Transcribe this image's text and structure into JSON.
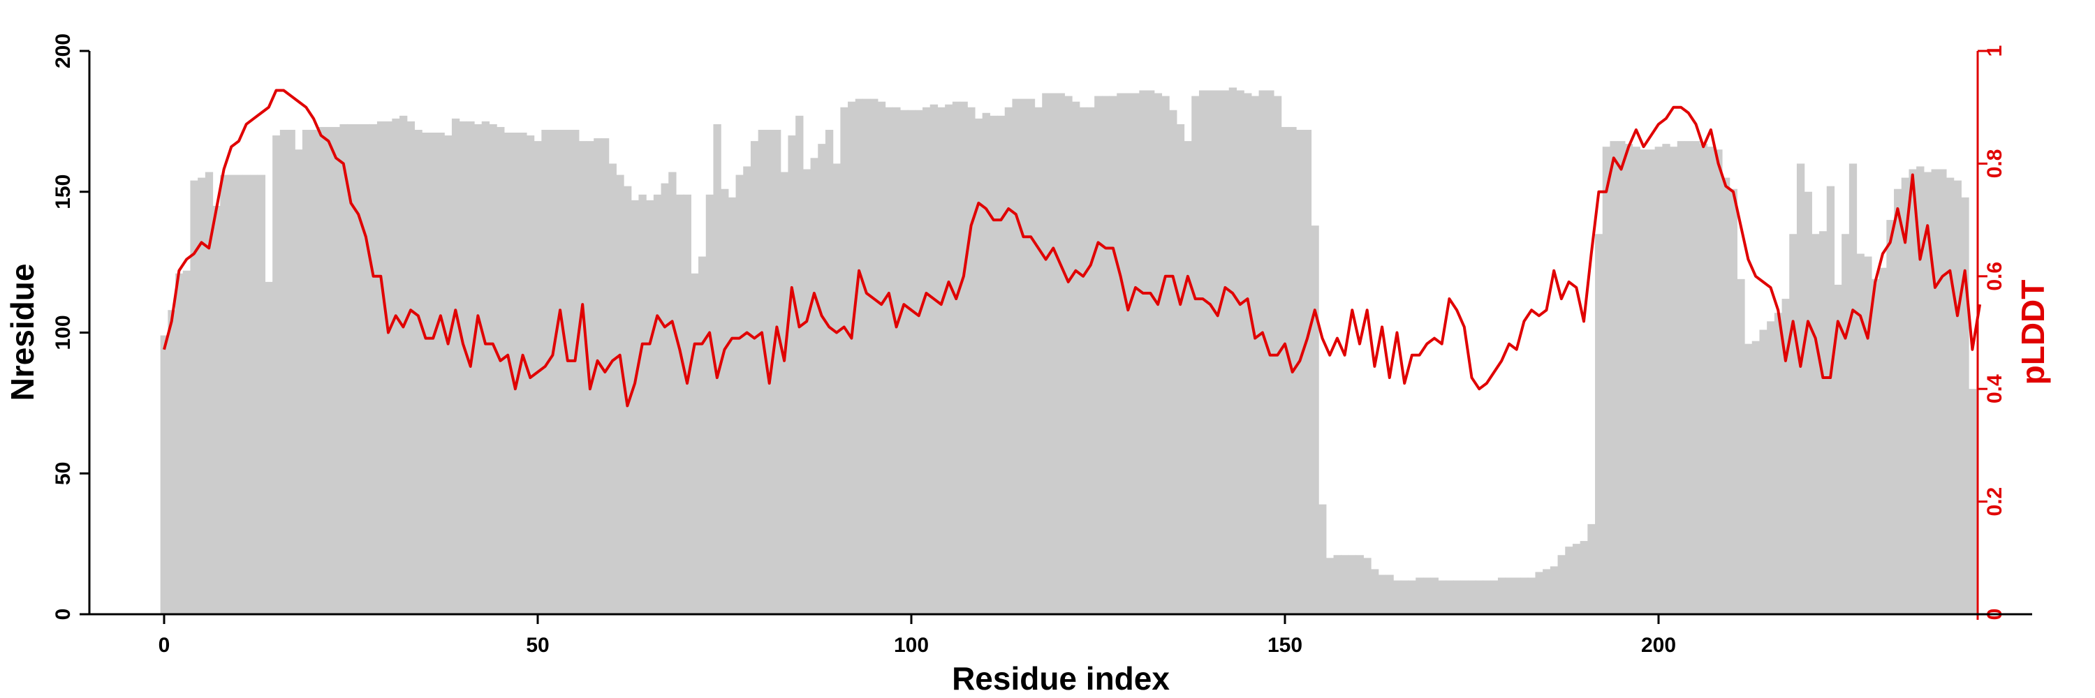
{
  "chart_data": {
    "type": "bar",
    "title": "",
    "xlabel": "Residue index",
    "ylabel": "Nresidue",
    "y2label": "pLDDT",
    "xlim": [
      -10,
      250
    ],
    "ylim": [
      0,
      200
    ],
    "y2lim": [
      0,
      1
    ],
    "x_ticks": [
      "0",
      "50",
      "100",
      "150",
      "200"
    ],
    "y_ticks": [
      "0",
      "50",
      "100",
      "150",
      "200"
    ],
    "y2_ticks": [
      "0",
      "0.2",
      "0.4",
      "0.6",
      "0.8",
      "1"
    ],
    "grid": false,
    "colors": {
      "bars": "#cccccc",
      "plddt": "#e00000",
      "axis": "#000000"
    },
    "series": [
      {
        "name": "Nresidue",
        "kind": "bar",
        "x_start": 0,
        "values": [
          99,
          108,
          121,
          122,
          154,
          155,
          157,
          145,
          156,
          156,
          156,
          156,
          156,
          156,
          118,
          170,
          172,
          172,
          165,
          172,
          172,
          173,
          173,
          173,
          174,
          174,
          174,
          174,
          174,
          175,
          175,
          176,
          177,
          175,
          172,
          171,
          171,
          171,
          170,
          176,
          175,
          175,
          174,
          175,
          174,
          173,
          171,
          171,
          171,
          170,
          168,
          172,
          172,
          172,
          172,
          172,
          168,
          168,
          169,
          169,
          160,
          156,
          152,
          147,
          149,
          147,
          149,
          153,
          157,
          149,
          149,
          121,
          127,
          149,
          174,
          151,
          148,
          156,
          159,
          168,
          172,
          172,
          172,
          157,
          170,
          177,
          158,
          162,
          167,
          172,
          160,
          180,
          182,
          183,
          183,
          183,
          182,
          180,
          180,
          179,
          179,
          179,
          180,
          181,
          180,
          181,
          182,
          182,
          180,
          176,
          178,
          177,
          177,
          180,
          183,
          183,
          183,
          180,
          185,
          185,
          185,
          184,
          182,
          180,
          180,
          184,
          184,
          184,
          185,
          185,
          185,
          186,
          186,
          185,
          184,
          179,
          174,
          168,
          184,
          186,
          186,
          186,
          186,
          187,
          186,
          185,
          184,
          186,
          186,
          184,
          173,
          173,
          172,
          172,
          138,
          39,
          20,
          21,
          21,
          21,
          21,
          20,
          16,
          14,
          14,
          12,
          12,
          12,
          13,
          13,
          13,
          12,
          12,
          12,
          12,
          12,
          12,
          12,
          12,
          13,
          13,
          13,
          13,
          13,
          15,
          16,
          17,
          21,
          24,
          25,
          26,
          32,
          135,
          166,
          168,
          168,
          167,
          166,
          165,
          165,
          166,
          167,
          166,
          168,
          168,
          168,
          167,
          166,
          165,
          155,
          151,
          119,
          96,
          97,
          101,
          104,
          107,
          112,
          135,
          160,
          150,
          135,
          136,
          152,
          117,
          135,
          160,
          128,
          127,
          119,
          123,
          140,
          151,
          155,
          158,
          159,
          157,
          158,
          158,
          155,
          154,
          148,
          80
        ]
      },
      {
        "name": "pLDDT",
        "kind": "line",
        "x_start": 0,
        "values": [
          0.47,
          0.52,
          0.61,
          0.63,
          0.64,
          0.66,
          0.65,
          0.72,
          0.79,
          0.83,
          0.84,
          0.87,
          0.88,
          0.89,
          0.9,
          0.93,
          0.93,
          0.92,
          0.91,
          0.9,
          0.88,
          0.85,
          0.84,
          0.81,
          0.8,
          0.73,
          0.71,
          0.67,
          0.6,
          0.6,
          0.5,
          0.53,
          0.51,
          0.54,
          0.53,
          0.49,
          0.49,
          0.53,
          0.48,
          0.54,
          0.48,
          0.44,
          0.53,
          0.48,
          0.48,
          0.45,
          0.46,
          0.4,
          0.46,
          0.42,
          0.43,
          0.44,
          0.46,
          0.54,
          0.45,
          0.45,
          0.55,
          0.4,
          0.45,
          0.43,
          0.45,
          0.46,
          0.37,
          0.41,
          0.48,
          0.48,
          0.53,
          0.51,
          0.52,
          0.47,
          0.41,
          0.48,
          0.48,
          0.5,
          0.42,
          0.47,
          0.49,
          0.49,
          0.5,
          0.49,
          0.5,
          0.41,
          0.51,
          0.45,
          0.58,
          0.51,
          0.52,
          0.57,
          0.53,
          0.51,
          0.5,
          0.51,
          0.49,
          0.61,
          0.57,
          0.56,
          0.55,
          0.57,
          0.51,
          0.55,
          0.54,
          0.53,
          0.57,
          0.56,
          0.55,
          0.59,
          0.56,
          0.6,
          0.69,
          0.73,
          0.72,
          0.7,
          0.7,
          0.72,
          0.71,
          0.67,
          0.67,
          0.65,
          0.63,
          0.65,
          0.62,
          0.59,
          0.61,
          0.6,
          0.62,
          0.66,
          0.65,
          0.65,
          0.6,
          0.54,
          0.58,
          0.57,
          0.57,
          0.55,
          0.6,
          0.6,
          0.55,
          0.6,
          0.56,
          0.56,
          0.55,
          0.53,
          0.58,
          0.57,
          0.55,
          0.56,
          0.49,
          0.5,
          0.46,
          0.46,
          0.48,
          0.43,
          0.45,
          0.49,
          0.54,
          0.49,
          0.46,
          0.49,
          0.46,
          0.54,
          0.48,
          0.54,
          0.44,
          0.51,
          0.42,
          0.5,
          0.41,
          0.46,
          0.46,
          0.48,
          0.49,
          0.48,
          0.56,
          0.54,
          0.51,
          0.42,
          0.4,
          0.41,
          0.43,
          0.45,
          0.48,
          0.47,
          0.52,
          0.54,
          0.53,
          0.54,
          0.61,
          0.56,
          0.59,
          0.58,
          0.52,
          0.64,
          0.75,
          0.75,
          0.81,
          0.79,
          0.83,
          0.86,
          0.83,
          0.85,
          0.87,
          0.88,
          0.9,
          0.9,
          0.89,
          0.87,
          0.83,
          0.86,
          0.8,
          0.76,
          0.75,
          0.69,
          0.63,
          0.6,
          0.59,
          0.58,
          0.54,
          0.45,
          0.52,
          0.44,
          0.52,
          0.49,
          0.42,
          0.42,
          0.52,
          0.49,
          0.54,
          0.53,
          0.49,
          0.59,
          0.64,
          0.66,
          0.72,
          0.66,
          0.78,
          0.63,
          0.69,
          0.58,
          0.6,
          0.61,
          0.53,
          0.61,
          0.47,
          0.55
        ]
      }
    ]
  }
}
